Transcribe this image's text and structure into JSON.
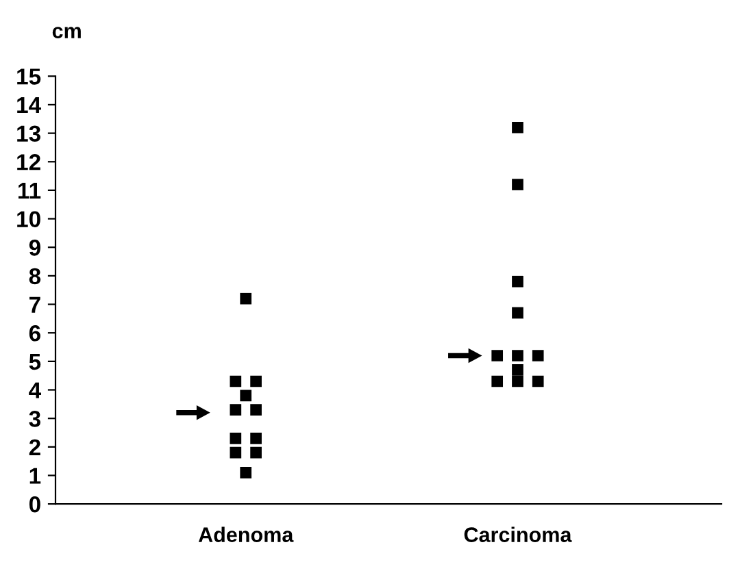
{
  "chart_data": {
    "type": "scatter",
    "ylabel": "cm",
    "categories": [
      "Adenoma",
      "Carcinoma"
    ],
    "series": [
      {
        "color": "#000000",
        "x": [
          "Adenoma",
          "Adenoma",
          "Adenoma",
          "Adenoma",
          "Adenoma",
          "Adenoma",
          "Adenoma",
          "Adenoma",
          "Adenoma",
          "Adenoma",
          "Adenoma"
        ],
        "values": [
          7.2,
          4.3,
          4.3,
          3.8,
          3.3,
          3.3,
          2.3,
          2.3,
          1.8,
          1.8,
          1.1
        ]
      },
      {
        "color": "#000000",
        "x": [
          "Carcinoma",
          "Carcinoma",
          "Carcinoma",
          "Carcinoma",
          "Carcinoma",
          "Carcinoma",
          "Carcinoma",
          "Carcinoma",
          "Carcinoma",
          "Carcinoma",
          "Carcinoma"
        ],
        "values": [
          13.2,
          11.2,
          7.8,
          6.7,
          5.2,
          5.2,
          5.2,
          4.7,
          4.3,
          4.3,
          4.3
        ]
      },
      {
        "color": "#000000",
        "marker": "triangle",
        "x": [
          "Adenoma",
          "Carcinoma"
        ],
        "values": [
          3.2,
          5.2
        ]
      }
    ],
    "marker": "square",
    "ylim": [
      0,
      15
    ],
    "yticks": [
      0,
      1,
      2,
      3,
      4,
      5,
      6,
      7,
      8,
      9,
      10,
      11,
      12,
      13,
      14,
      15
    ],
    "grid": false,
    "legend": false
  }
}
